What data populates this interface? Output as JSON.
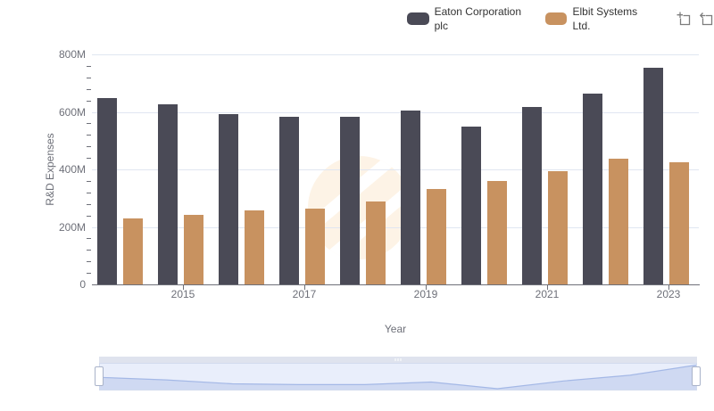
{
  "legend": {
    "items": [
      {
        "label": "Eaton Corporation plc",
        "color": "#4a4a56"
      },
      {
        "label": "Elbit Systems Ltd.",
        "color": "#c89260"
      }
    ]
  },
  "toolbox": {
    "icons": [
      {
        "name": "datazoom-select-icon"
      },
      {
        "name": "restore-icon"
      }
    ]
  },
  "chart_data": {
    "type": "bar",
    "title": "",
    "xlabel": "Year",
    "ylabel": "R&D Expenses",
    "value_unit": "M",
    "categories": [
      "2014",
      "2015",
      "2016",
      "2017",
      "2018",
      "2019",
      "2020",
      "2021",
      "2022",
      "2023"
    ],
    "series": [
      {
        "name": "Eaton Corporation plc",
        "color": "#4a4a56",
        "values": [
          647,
          625,
          591,
          584,
          584,
          606,
          548,
          616,
          665,
          754
        ]
      },
      {
        "name": "Elbit Systems Ltd.",
        "color": "#c89260",
        "values": [
          229,
          243,
          256,
          264,
          287,
          332,
          360,
          395,
          436,
          424
        ]
      }
    ],
    "ylim": [
      0,
      800
    ],
    "y_ticks": [
      0,
      200,
      400,
      600,
      800
    ],
    "y_tick_labels": [
      "0",
      "200M",
      "400M",
      "600M",
      "800M"
    ],
    "minor_y_tick_step": 40,
    "x_tick_labels": [
      "2015",
      "2017",
      "2019",
      "2021",
      "2023"
    ],
    "grid": true,
    "legend_position": "top-right",
    "datazoom": {
      "shadow_series": "Eaton Corporation plc",
      "range_start_pct": 0,
      "range_end_pct": 100,
      "grip_icon": "drag-grip-icon"
    }
  },
  "colors": {
    "grid_line": "#e0e6f1",
    "axis_line": "#6e7079",
    "axis_text": "#6e7079",
    "legend_text": "#333333",
    "watermark": "#fdf3e6",
    "dz_filler": "#e9eefb",
    "dz_area": "#cfd9f2",
    "dz_line": "#a4b8e6",
    "dz_move_handle": "#dfe3ee",
    "dz_border": "#d2dbee"
  }
}
